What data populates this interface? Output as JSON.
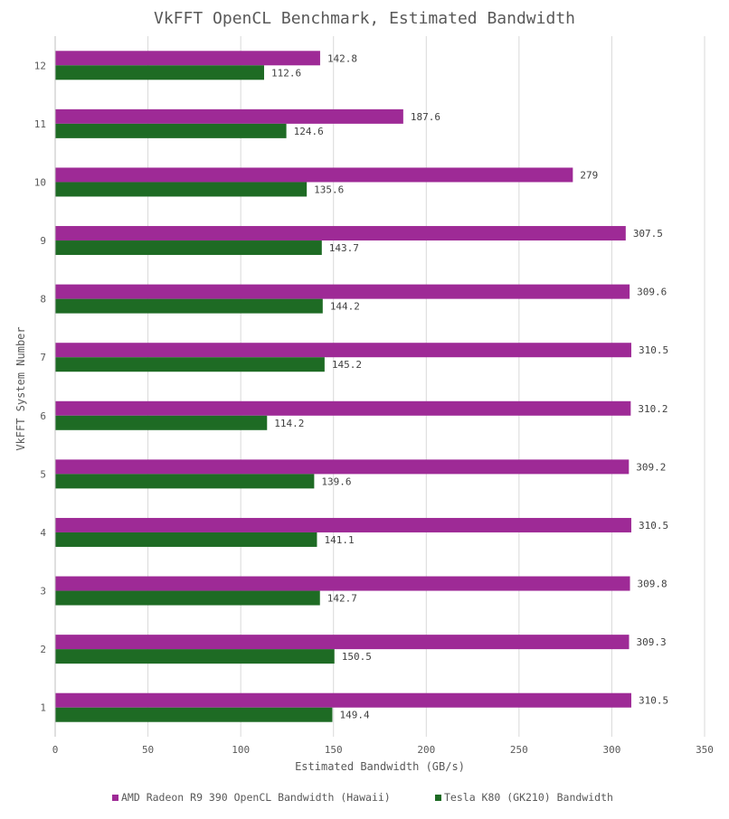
{
  "chart_data": {
    "type": "bar",
    "orientation": "horizontal",
    "title": "VkFFT OpenCL Benchmark, Estimated Bandwidth",
    "xlabel": "Estimated Bandwidth (GB/s)",
    "ylabel": "VkFFT System Number",
    "xlim": [
      0,
      350
    ],
    "xticks": [
      0,
      50,
      100,
      150,
      200,
      250,
      300,
      350
    ],
    "grid": true,
    "legend_position": "bottom",
    "categories": [
      "1",
      "2",
      "3",
      "4",
      "5",
      "6",
      "7",
      "8",
      "9",
      "10",
      "11",
      "12"
    ],
    "series": [
      {
        "name": "AMD Radeon R9 390 OpenCL Bandwidth (Hawaii)",
        "color": "#9e2a96",
        "values": [
          310.5,
          309.3,
          309.8,
          310.5,
          309.2,
          310.2,
          310.5,
          309.6,
          307.5,
          279,
          187.6,
          142.8
        ],
        "labels": [
          "310.5",
          "309.3",
          "309.8",
          "310.5",
          "309.2",
          "310.2",
          "310.5",
          "309.6",
          "307.5",
          "279",
          "187.6",
          "142.8"
        ]
      },
      {
        "name": "Tesla K80 (GK210) Bandwidth",
        "color": "#1e6b24",
        "values": [
          149.4,
          150.5,
          142.7,
          141.1,
          139.6,
          114.2,
          145.2,
          144.2,
          143.7,
          135.6,
          124.6,
          112.6
        ],
        "labels": [
          "149.4",
          "150.5",
          "142.7",
          "141.1",
          "139.6",
          "114.2",
          "145.2",
          "144.2",
          "143.7",
          "135.6",
          "124.6",
          "112.6"
        ]
      }
    ]
  }
}
